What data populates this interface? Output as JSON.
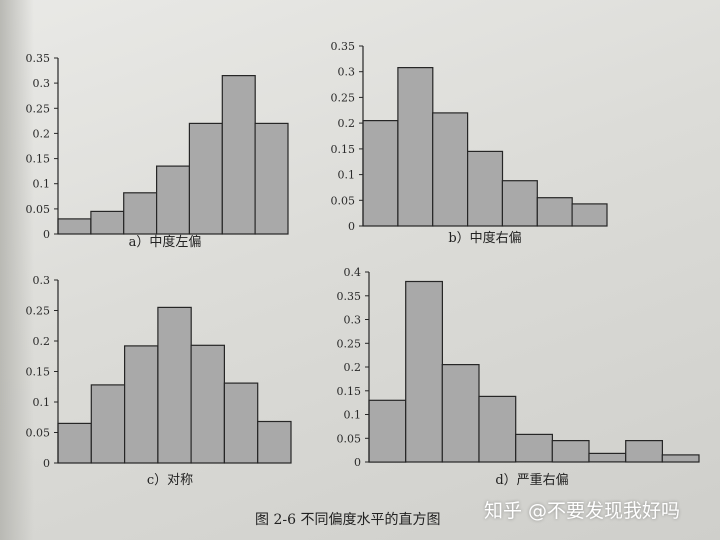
{
  "figure_caption": "图 2-6    不同偏度水平的直方图",
  "watermark": "知乎 @不要发现我好吗",
  "chart_data": [
    {
      "type": "bar",
      "title": "a）中度左偏",
      "values": [
        0.03,
        0.045,
        0.082,
        0.135,
        0.22,
        0.315,
        0.22
      ],
      "ylim": [
        0,
        0.35
      ],
      "yticks": [
        "0",
        "0.05",
        "0.1",
        "0.15",
        "0.2",
        "0.25",
        "0.3",
        "0.35"
      ],
      "xlabel": "",
      "ylabel": "",
      "grid": false
    },
    {
      "type": "bar",
      "title": "b）中度右偏",
      "values": [
        0.205,
        0.308,
        0.22,
        0.145,
        0.088,
        0.055,
        0.043
      ],
      "ylim": [
        0,
        0.35
      ],
      "yticks": [
        "0",
        "0.05",
        "0.1",
        "0.15",
        "0.2",
        "0.25",
        "0.3",
        "0.35"
      ],
      "xlabel": "",
      "ylabel": "",
      "grid": false
    },
    {
      "type": "bar",
      "title": "c）对称",
      "values": [
        0.065,
        0.128,
        0.192,
        0.255,
        0.193,
        0.131,
        0.068
      ],
      "ylim": [
        0,
        0.3
      ],
      "yticks": [
        "0",
        "0.05",
        "0.1",
        "0.15",
        "0.2",
        "0.25",
        "0.3"
      ],
      "xlabel": "",
      "ylabel": "",
      "grid": false
    },
    {
      "type": "bar",
      "title": "d）严重右偏",
      "values": [
        0.13,
        0.38,
        0.205,
        0.138,
        0.058,
        0.045,
        0.018,
        0.045,
        0.015
      ],
      "ylim": [
        0,
        0.4
      ],
      "yticks": [
        "0",
        "0.05",
        "0.1",
        "0.15",
        "0.2",
        "0.25",
        "0.3",
        "0.35",
        "0.4"
      ],
      "xlabel": "",
      "ylabel": "",
      "grid": false
    }
  ]
}
